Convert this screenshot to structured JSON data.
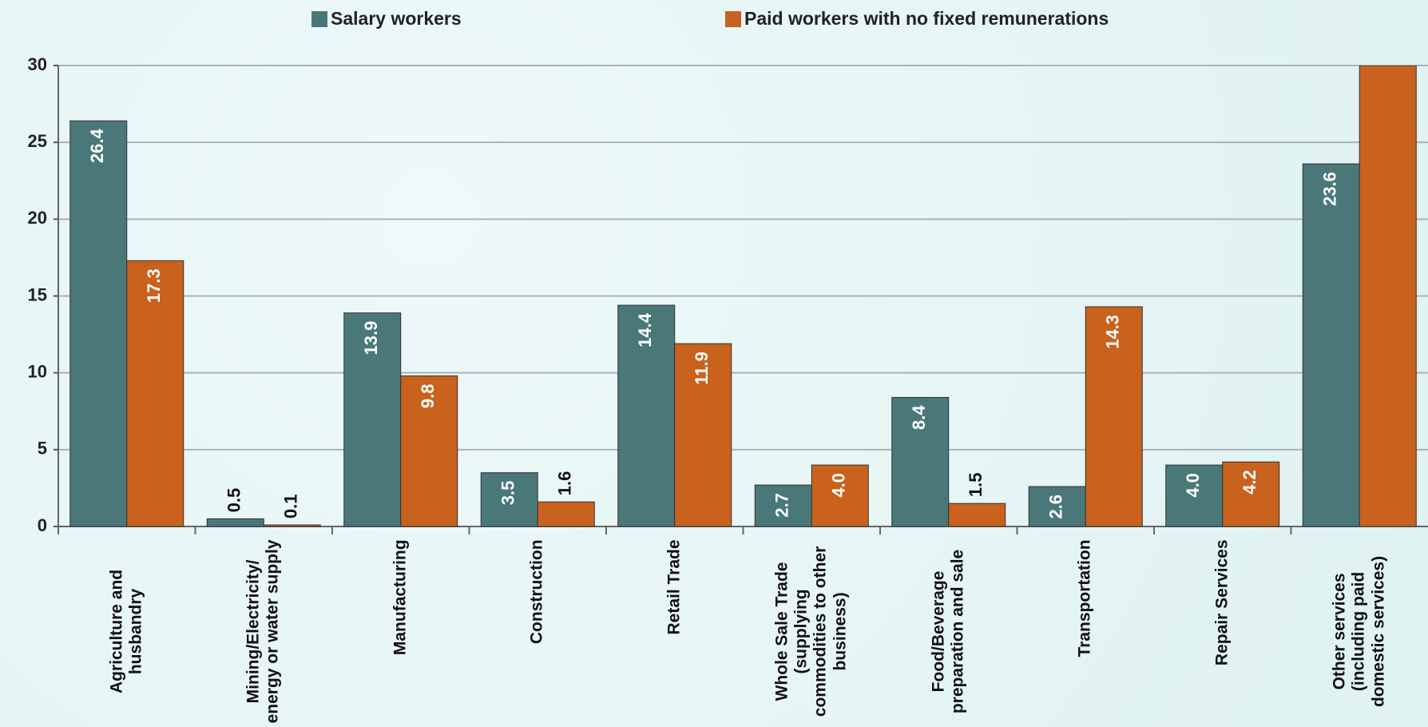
{
  "chart_data": {
    "type": "bar",
    "categories": [
      "Agriculture and husbandry",
      "Mining/Electricity/ energy or water supply",
      "Manufacturing",
      "Construction",
      "Retail Trade",
      "Whole Sale Trade (supplying commodities to other business)",
      "Food/Beverage preparation and sale",
      "Transportation",
      "Repair Services",
      "Other services (including paid domestic services)"
    ],
    "series": [
      {
        "name": "Salary workers",
        "color": "#4a7878",
        "values": [
          26.4,
          0.5,
          13.9,
          3.5,
          14.4,
          2.7,
          8.4,
          2.6,
          4.0,
          23.6
        ],
        "value_labels": [
          "26.4",
          "0.5",
          "13.9",
          "3.5",
          "14.4",
          "2.7",
          "8.4",
          "2.6",
          "4.0",
          "23.6"
        ]
      },
      {
        "name": "Paid workers with no fixed remunerations",
        "color": "#c8621c",
        "values": [
          17.3,
          0.1,
          9.8,
          1.6,
          11.9,
          4.0,
          1.5,
          14.3,
          4.2,
          30
        ],
        "value_labels": [
          "17.3",
          "0.1",
          "9.8",
          "1.6",
          "11.9",
          "4.0",
          "1.5",
          "14.3",
          "4.2",
          null
        ]
      }
    ],
    "ylim": [
      0,
      30
    ],
    "yticks": [
      0,
      5,
      10,
      15,
      20,
      25,
      30
    ],
    "grid": true,
    "legend": "top"
  }
}
